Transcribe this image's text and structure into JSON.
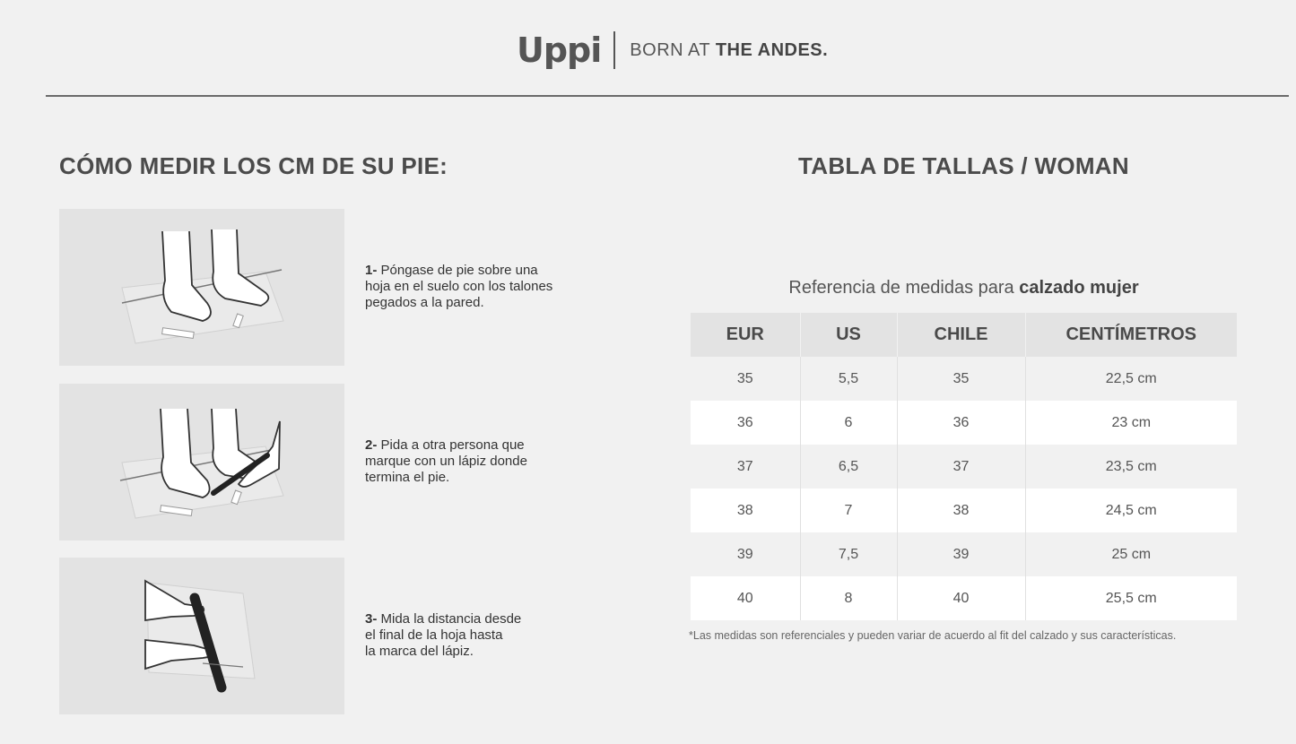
{
  "header": {
    "logo": "Uppi",
    "tagline_light": "BORN AT",
    "tagline_bold": "THE ANDES."
  },
  "left": {
    "title": "CÓMO MEDIR LOS CM DE SU PIE:",
    "steps": [
      {
        "number": "1-",
        "lines": [
          "Póngase de pie sobre una",
          "hoja en el suelo con los talones",
          "pegados a la pared."
        ],
        "illustration": "feet-on-paper-illustration"
      },
      {
        "number": "2-",
        "lines": [
          "Pida a otra persona que",
          "marque con un lápiz donde",
          "termina el pie."
        ],
        "illustration": "pencil-mark-illustration"
      },
      {
        "number": "3-",
        "lines": [
          "Mida la distancia desde",
          "el final de la hoja hasta",
          "la marca del lápiz."
        ],
        "illustration": "ruler-measure-illustration"
      }
    ]
  },
  "right": {
    "title": "TABLA DE TALLAS / WOMAN",
    "caption_light": "Referencia de medidas para",
    "caption_bold": "calzado mujer",
    "columns": [
      "EUR",
      "US",
      "CHILE",
      "CENTÍMETROS"
    ],
    "rows": [
      [
        "35",
        "5,5",
        "35",
        "22,5 cm"
      ],
      [
        "36",
        "6",
        "36",
        "23 cm"
      ],
      [
        "37",
        "6,5",
        "37",
        "23,5 cm"
      ],
      [
        "38",
        "7",
        "38",
        "24,5 cm"
      ],
      [
        "39",
        "7,5",
        "39",
        "25 cm"
      ],
      [
        "40",
        "8",
        "40",
        "25,5 cm"
      ]
    ],
    "note": "*Las medidas son referenciales y pueden variar de acuerdo al fit del calzado y sus características."
  }
}
